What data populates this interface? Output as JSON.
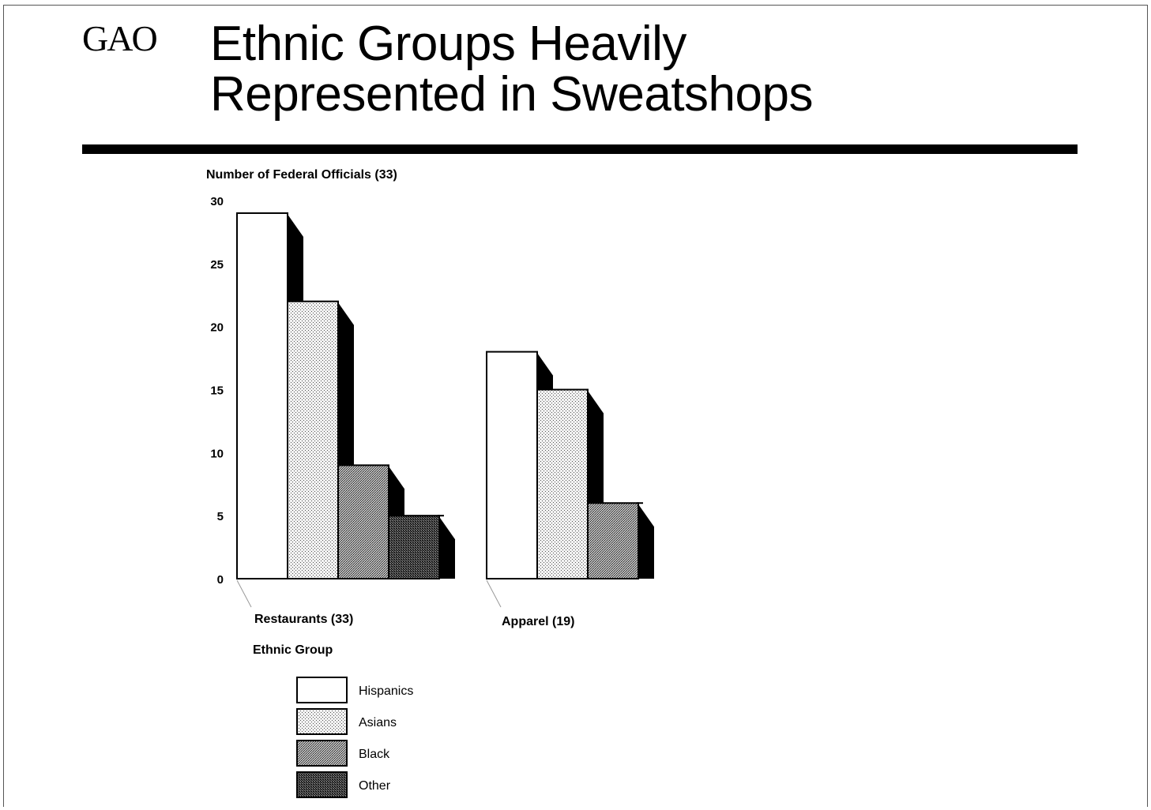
{
  "logo": "GAO",
  "title_line1": "Ethnic Groups Heavily",
  "title_line2": "Represented in Sweatshops",
  "chart_data": {
    "type": "bar",
    "ylabel": "Number of Federal Officials (33)",
    "xlabel": "Ethnic Group",
    "ylim": [
      0,
      30
    ],
    "yticks": [
      0,
      5,
      10,
      15,
      20,
      25,
      30
    ],
    "categories": [
      "Restaurants (33)",
      "Apparel (19)"
    ],
    "series": [
      {
        "name": "Hispanics",
        "values": [
          29,
          18
        ]
      },
      {
        "name": "Asians",
        "values": [
          22,
          15
        ]
      },
      {
        "name": "Black",
        "values": [
          9,
          6
        ]
      },
      {
        "name": "Other",
        "values": [
          5,
          null
        ]
      }
    ],
    "legend_position": "bottom-left",
    "grid": false
  }
}
